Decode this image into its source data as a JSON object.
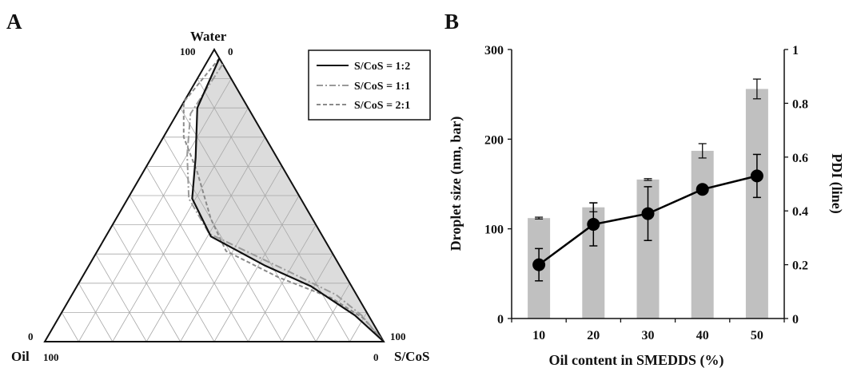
{
  "panels": {
    "a": {
      "letter": "A"
    },
    "b": {
      "letter": "B"
    }
  },
  "chart_data": [
    {
      "type": "ternary",
      "vertices": {
        "top": "Water",
        "left": "Oil",
        "right": "S/CoS"
      },
      "corner_ticks": {
        "top_left": "100",
        "top_right": "0",
        "left_top": "0",
        "left_bottom": "100",
        "right_top": "100",
        "right_bottom": "0"
      },
      "grid": true,
      "legend": {
        "position": "top-right"
      },
      "series": [
        {
          "name": "S/CoS = 1:2",
          "style": "solid",
          "color": "#111111",
          "points": [
            [
              97,
              0
            ],
            [
              80,
              15
            ],
            [
              63,
              24
            ],
            [
              49,
              32
            ],
            [
              36,
              33
            ],
            [
              26,
              22
            ],
            [
              19,
              12
            ],
            [
              9,
              4
            ],
            [
              0,
              0
            ]
          ]
        },
        {
          "name": "S/CoS = 1:1",
          "style": "dash-dot",
          "color": "#9a9a9a",
          "points": [
            [
              95,
              0
            ],
            [
              78,
              18
            ],
            [
              64,
              26
            ],
            [
              49,
              33
            ],
            [
              37,
              33
            ],
            [
              24,
              16
            ],
            [
              16,
              6
            ],
            [
              9,
              2
            ],
            [
              0,
              0
            ]
          ]
        },
        {
          "name": "S/CoS = 2:1",
          "style": "dashed",
          "color": "#8a8a8a",
          "points": [
            [
              97,
              0
            ],
            [
              82,
              18
            ],
            [
              70,
              24
            ],
            [
              58,
              26
            ],
            [
              42,
              30
            ],
            [
              31,
              31
            ],
            [
              22,
              20
            ],
            [
              15,
              8
            ],
            [
              8,
              2
            ],
            [
              0,
              0
            ]
          ]
        }
      ]
    },
    {
      "type": "bar",
      "xlabel": "Oil content in SMEDDS (%)",
      "ylabel": "Droplet size (nm, bar)",
      "y2label": "PDI (line)",
      "categories": [
        "10",
        "20",
        "30",
        "40",
        "50"
      ],
      "ylim": [
        0,
        300
      ],
      "yticks": [
        "0",
        "100",
        "200",
        "300"
      ],
      "y2lim": [
        0,
        1
      ],
      "y2ticks": [
        "0",
        "0.2",
        "0.4",
        "0.6",
        "0.8",
        "1"
      ],
      "grid": false,
      "series": [
        {
          "kind": "bar",
          "color": "#c0c0c0",
          "values": [
            112,
            124,
            155,
            187,
            256
          ],
          "errors": [
            1,
            5,
            1,
            8,
            11
          ]
        },
        {
          "kind": "line",
          "color": "#000000",
          "values": [
            0.2,
            0.35,
            0.39,
            0.48,
            0.53
          ],
          "errors": [
            0.06,
            0.08,
            0.1,
            0.01,
            0.08
          ]
        }
      ]
    }
  ]
}
